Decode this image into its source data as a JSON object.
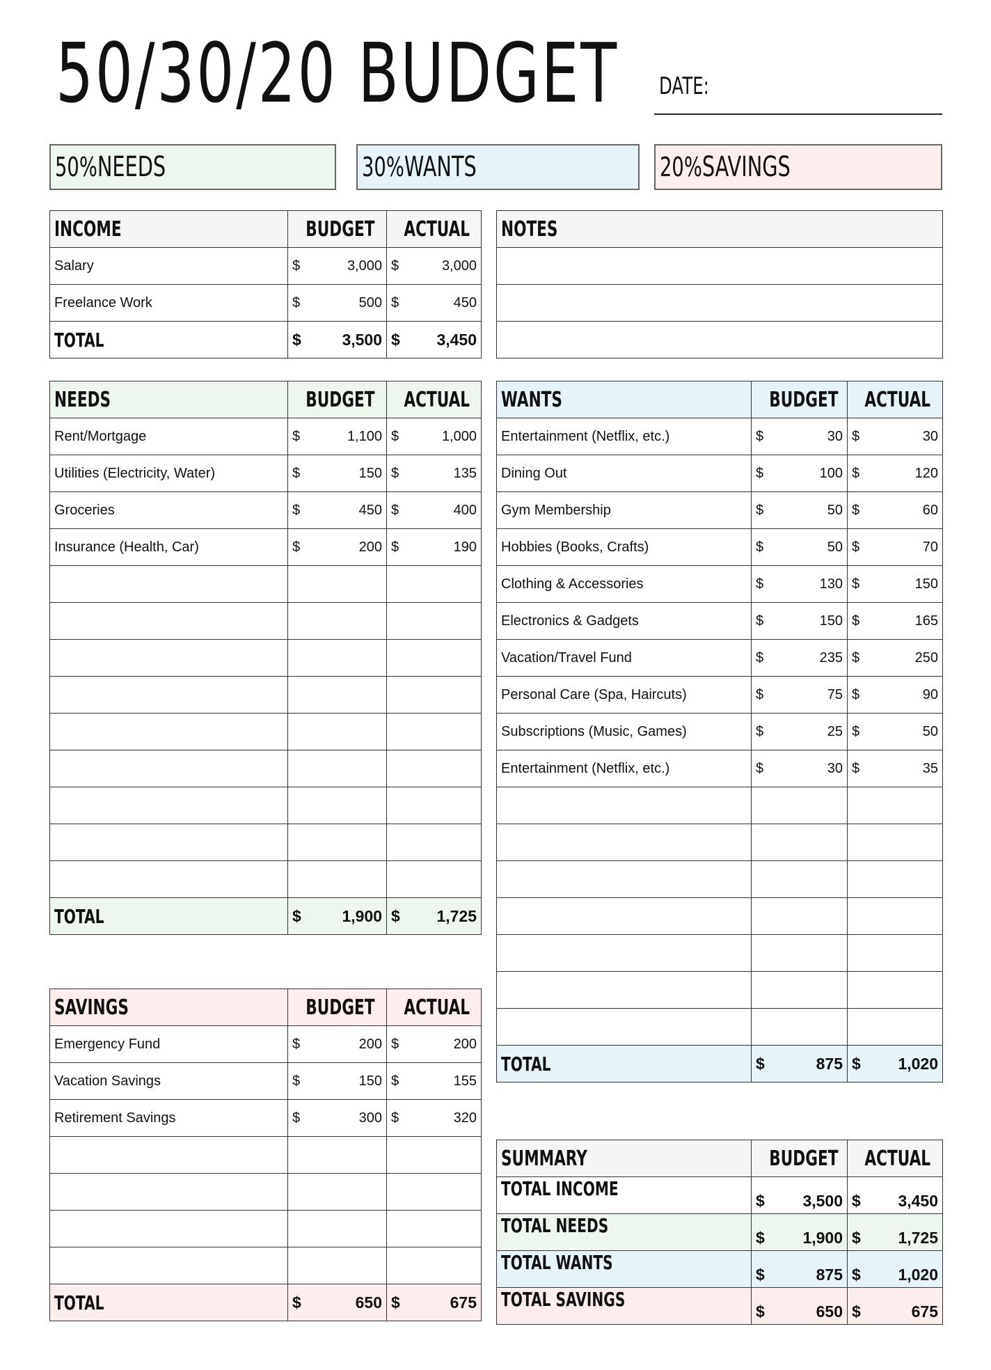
{
  "title": "50/30/20 BUDGET",
  "date_label": "DATE:",
  "categories": [
    {
      "pct": "50%",
      "label": "NEEDS",
      "color": "#eef7ee"
    },
    {
      "pct": "30%",
      "label": "WANTS",
      "color": "#e6f3f9"
    },
    {
      "pct": "20%",
      "label": "SAVINGS",
      "color": "#fdeeee"
    }
  ],
  "colors": {
    "header_gray": "#f5f5f5",
    "needs": "#eef7ee",
    "wants": "#e6f3f9",
    "savings": "#fdeeee",
    "border": "#333333"
  },
  "currency": "$",
  "income": {
    "title": "INCOME",
    "budget_label": "BUDGET",
    "actual_label": "ACTUAL",
    "rows": [
      {
        "label": "Salary",
        "budget": "3,000",
        "actual": "3,000"
      },
      {
        "label": "Freelance Work",
        "budget": "500",
        "actual": "450"
      }
    ],
    "total": {
      "label": "TOTAL",
      "budget": "3,500",
      "actual": "3,450"
    }
  },
  "notes": {
    "title": "NOTES"
  },
  "needs": {
    "title": "NEEDS",
    "budget_label": "BUDGET",
    "actual_label": "ACTUAL",
    "rows": [
      {
        "label": "Rent/Mortgage",
        "budget": "1,100",
        "actual": "1,000"
      },
      {
        "label": "Utilities (Electricity, Water)",
        "budget": "150",
        "actual": "135"
      },
      {
        "label": "Groceries",
        "budget": "450",
        "actual": "400"
      },
      {
        "label": "Insurance (Health, Car)",
        "budget": "200",
        "actual": "190"
      }
    ],
    "total": {
      "label": "TOTAL",
      "budget": "1,900",
      "actual": "1,725"
    }
  },
  "wants": {
    "title": "WANTS",
    "budget_label": "BUDGET",
    "actual_label": "ACTUAL",
    "rows": [
      {
        "label": "Entertainment (Netflix, etc.)",
        "budget": "30",
        "actual": "30"
      },
      {
        "label": "Dining Out",
        "budget": "100",
        "actual": "120"
      },
      {
        "label": "Gym Membership",
        "budget": "50",
        "actual": "60"
      },
      {
        "label": "Hobbies (Books, Crafts)",
        "budget": "50",
        "actual": "70"
      },
      {
        "label": "Clothing & Accessories",
        "budget": "130",
        "actual": "150"
      },
      {
        "label": "Electronics & Gadgets",
        "budget": "150",
        "actual": "165"
      },
      {
        "label": "Vacation/Travel Fund",
        "budget": "235",
        "actual": "250"
      },
      {
        "label": "Personal Care (Spa, Haircuts)",
        "budget": "75",
        "actual": "90"
      },
      {
        "label": "Subscriptions (Music, Games)",
        "budget": "25",
        "actual": "50"
      },
      {
        "label": "Entertainment (Netflix, etc.)",
        "budget": "30",
        "actual": "35"
      }
    ],
    "total": {
      "label": "TOTAL",
      "budget": "875",
      "actual": "1,020"
    }
  },
  "savings": {
    "title": "SAVINGS",
    "budget_label": "BUDGET",
    "actual_label": "ACTUAL",
    "rows": [
      {
        "label": "Emergency Fund",
        "budget": "200",
        "actual": "200"
      },
      {
        "label": "Vacation Savings",
        "budget": "150",
        "actual": "155"
      },
      {
        "label": "Retirement Savings",
        "budget": "300",
        "actual": "320"
      }
    ],
    "total": {
      "label": "TOTAL",
      "budget": "650",
      "actual": "675"
    }
  },
  "summary": {
    "title": "SUMMARY",
    "budget_label": "BUDGET",
    "actual_label": "ACTUAL",
    "rows": [
      {
        "label": "TOTAL INCOME",
        "budget": "3,500",
        "actual": "3,450",
        "color": "#ffffff"
      },
      {
        "label": "TOTAL NEEDS",
        "budget": "1,900",
        "actual": "1,725",
        "color": "#eef7ee"
      },
      {
        "label": "TOTAL WANTS",
        "budget": "875",
        "actual": "1,020",
        "color": "#e6f3f9"
      },
      {
        "label": "TOTAL SAVINGS",
        "budget": "650",
        "actual": "675",
        "color": "#fdeeee"
      }
    ]
  }
}
